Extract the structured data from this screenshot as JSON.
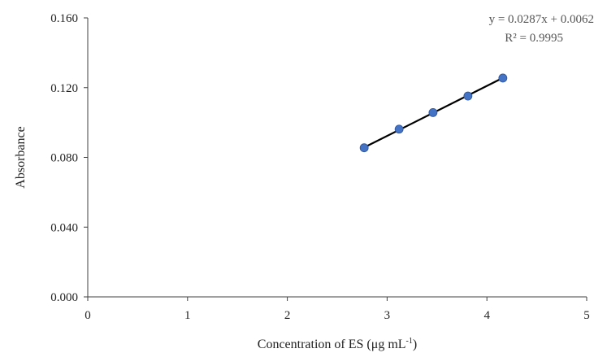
{
  "chart_data": {
    "type": "scatter",
    "title": "",
    "xlabel_main": "Concentration of ES (μg mL",
    "xlabel_sup": "-1",
    "xlabel_tail": ")",
    "ylabel": "Absorbance",
    "xlim": [
      0,
      5
    ],
    "ylim": [
      0,
      0.16
    ],
    "x_ticks": [
      "0",
      "1",
      "2",
      "3",
      "4",
      "5"
    ],
    "y_ticks": [
      "0.000",
      "0.040",
      "0.080",
      "0.120",
      "0.160"
    ],
    "grid": false,
    "legend": "none",
    "series": [
      {
        "x": [
          2.77,
          3.12,
          3.46,
          3.81,
          4.16
        ],
        "y": [
          0.0855,
          0.0962,
          0.1057,
          0.1152,
          0.1255
        ],
        "marker_color": "#4472C4"
      }
    ],
    "trendline": {
      "slope": 0.0287,
      "intercept": 0.0062,
      "x_range": [
        2.77,
        4.16
      ],
      "color": "#000000"
    },
    "annotations": {
      "equation": "y = 0.0287x + 0.0062",
      "r_squared": "R² = 0.9995"
    }
  }
}
